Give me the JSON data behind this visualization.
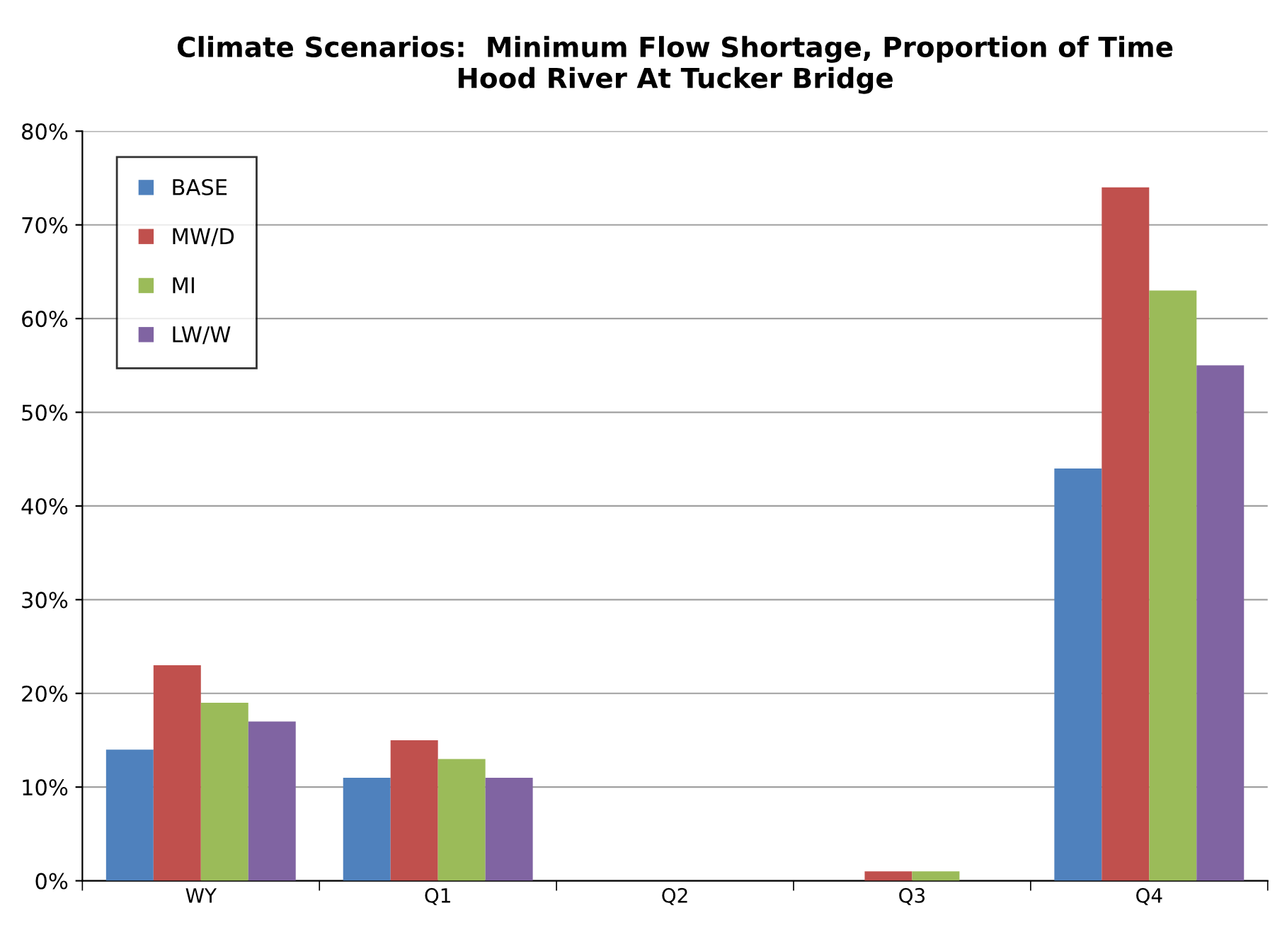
{
  "chart_data": {
    "type": "bar",
    "title": "Climate Scenarios:  Minimum Flow Shortage, Proportion of Time\nHood River At Tucker Bridge",
    "categories": [
      "WY",
      "Q1",
      "Q2",
      "Q3",
      "Q4"
    ],
    "series": [
      {
        "name": "BASE",
        "color": "#4f81bd",
        "values": [
          14,
          11,
          0,
          0,
          44
        ]
      },
      {
        "name": "MW/D",
        "color": "#c0504d",
        "values": [
          23,
          15,
          0,
          1,
          74
        ]
      },
      {
        "name": "MI",
        "color": "#9bbb59",
        "values": [
          19,
          13,
          0,
          1,
          63
        ]
      },
      {
        "name": "LW/W",
        "color": "#8064a2",
        "values": [
          17,
          11,
          0,
          0,
          55
        ]
      }
    ],
    "ylim": [
      0,
      80
    ],
    "yticks": [
      {
        "value": 0,
        "label": "0%"
      },
      {
        "value": 10,
        "label": "10%"
      },
      {
        "value": 20,
        "label": "20%"
      },
      {
        "value": 30,
        "label": "30%"
      },
      {
        "value": 40,
        "label": "40%"
      },
      {
        "value": 50,
        "label": "50%"
      },
      {
        "value": 60,
        "label": "60%"
      },
      {
        "value": 70,
        "label": "70%"
      },
      {
        "value": 80,
        "label": "80%"
      }
    ],
    "grid": "y",
    "legend": "top left"
  }
}
